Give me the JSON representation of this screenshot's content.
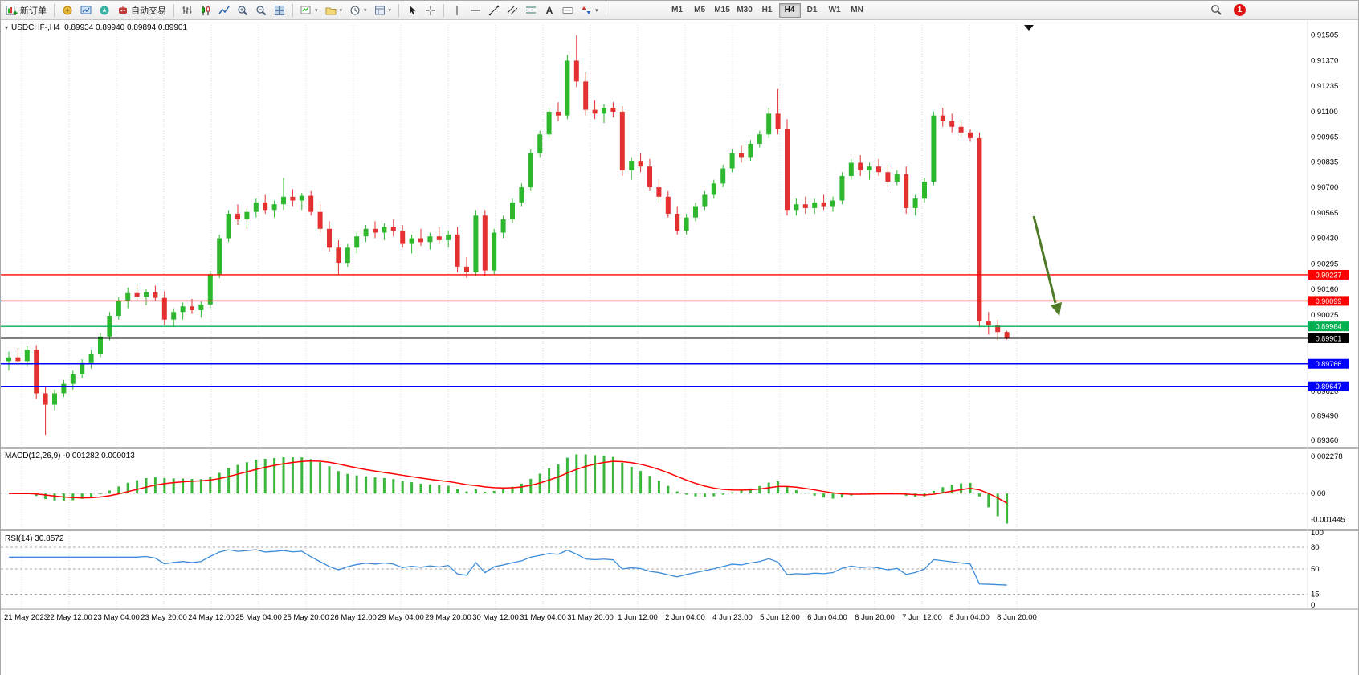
{
  "toolbar": {
    "new_order": "新订单",
    "auto_trading": "自动交易",
    "timeframes": [
      "M1",
      "M5",
      "M15",
      "M30",
      "H1",
      "H4",
      "D1",
      "W1",
      "MN"
    ],
    "active_timeframe": "H4",
    "notification_count": "1"
  },
  "window": {
    "symbol_info": "USDCHF-,H4  0.89934 0.89940 0.89894 0.89901"
  },
  "chart_data": {
    "type": "candlestick",
    "symbol": "USDCHF-",
    "timeframe": "H4",
    "price_range": [
      0.89327,
      0.91559
    ],
    "price_axis_labels": [
      0.91505,
      0.9137,
      0.91235,
      0.911,
      0.90965,
      0.90835,
      0.907,
      0.90565,
      0.9043,
      0.90295,
      0.9016,
      0.90025,
      0.8989,
      0.89755,
      0.8962,
      0.8949,
      0.8936
    ],
    "hlines": [
      {
        "price": 0.90237,
        "label": "0.90237",
        "color": "#ff0000"
      },
      {
        "price": 0.90099,
        "label": "0.90099",
        "color": "#ff0000"
      },
      {
        "price": 0.89964,
        "label": "0.89964",
        "color": "#00b050"
      },
      {
        "price": 0.89901,
        "label": "0.89901",
        "color": "#000000"
      },
      {
        "price": 0.89766,
        "label": "0.89766",
        "color": "#0000ff"
      },
      {
        "price": 0.89647,
        "label": "0.89647",
        "color": "#0000ff"
      }
    ],
    "time_labels": [
      "21 May 2023",
      "22 May 12:00",
      "23 May 04:00",
      "23 May 20:00",
      "24 May 12:00",
      "25 May 04:00",
      "25 May 20:00",
      "26 May 12:00",
      "29 May 04:00",
      "29 May 20:00",
      "30 May 12:00",
      "31 May 04:00",
      "31 May 20:00",
      "1 Jun 12:00",
      "2 Jun 04:00",
      "4 Jun 23:00",
      "5 Jun 12:00",
      "6 Jun 04:00",
      "6 Jun 20:00",
      "7 Jun 12:00",
      "8 Jun 04:00",
      "8 Jun 20:00"
    ],
    "ohlc": [
      [
        0.8978,
        0.8983,
        0.8973,
        0.898
      ],
      [
        0.898,
        0.8985,
        0.8976,
        0.8978
      ],
      [
        0.8978,
        0.8986,
        0.8975,
        0.8984
      ],
      [
        0.8984,
        0.89865,
        0.8958,
        0.8961
      ],
      [
        0.8961,
        0.8965,
        0.8939,
        0.8955
      ],
      [
        0.8955,
        0.8963,
        0.8952,
        0.8961
      ],
      [
        0.8961,
        0.8968,
        0.8959,
        0.8966
      ],
      [
        0.8966,
        0.8973,
        0.8963,
        0.8971
      ],
      [
        0.8971,
        0.8979,
        0.8969,
        0.8977
      ],
      [
        0.8977,
        0.8984,
        0.8974,
        0.8982
      ],
      [
        0.8982,
        0.8993,
        0.898,
        0.8991
      ],
      [
        0.8991,
        0.9004,
        0.8989,
        0.9002
      ],
      [
        0.9002,
        0.9012,
        0.9,
        0.901
      ],
      [
        0.901,
        0.9017,
        0.9006,
        0.9014
      ],
      [
        0.9014,
        0.90185,
        0.90095,
        0.9012
      ],
      [
        0.9012,
        0.9016,
        0.90075,
        0.90145
      ],
      [
        0.90145,
        0.9018,
        0.901,
        0.90115
      ],
      [
        0.90115,
        0.9015,
        0.8997,
        0.9
      ],
      [
        0.9,
        0.9006,
        0.8996,
        0.9004
      ],
      [
        0.9004,
        0.9009,
        0.9,
        0.9007
      ],
      [
        0.9007,
        0.9011,
        0.9003,
        0.9005
      ],
      [
        0.9005,
        0.901,
        0.9001,
        0.9008
      ],
      [
        0.9008,
        0.9026,
        0.9006,
        0.9024
      ],
      [
        0.9024,
        0.9045,
        0.9022,
        0.9043
      ],
      [
        0.9043,
        0.9058,
        0.9041,
        0.9056
      ],
      [
        0.9056,
        0.9061,
        0.905,
        0.9053
      ],
      [
        0.9053,
        0.9059,
        0.9048,
        0.9057
      ],
      [
        0.9057,
        0.9064,
        0.9054,
        0.9062
      ],
      [
        0.9062,
        0.9066,
        0.9056,
        0.9058
      ],
      [
        0.9058,
        0.9063,
        0.9054,
        0.9061
      ],
      [
        0.9061,
        0.9075,
        0.9058,
        0.9065
      ],
      [
        0.9065,
        0.9069,
        0.906,
        0.9063
      ],
      [
        0.9063,
        0.9067,
        0.9058,
        0.90655
      ],
      [
        0.90655,
        0.9068,
        0.9055,
        0.9057
      ],
      [
        0.9057,
        0.9061,
        0.9046,
        0.9048
      ],
      [
        0.9048,
        0.9052,
        0.9036,
        0.9038
      ],
      [
        0.9038,
        0.9042,
        0.9024,
        0.903
      ],
      [
        0.903,
        0.904,
        0.9028,
        0.9038
      ],
      [
        0.9038,
        0.9046,
        0.9035,
        0.9044
      ],
      [
        0.9044,
        0.905,
        0.9041,
        0.9048
      ],
      [
        0.9048,
        0.9052,
        0.9043,
        0.9046
      ],
      [
        0.9046,
        0.9051,
        0.9042,
        0.9049
      ],
      [
        0.9049,
        0.9053,
        0.9044,
        0.9047
      ],
      [
        0.9047,
        0.905,
        0.9038,
        0.904
      ],
      [
        0.904,
        0.9045,
        0.9035,
        0.9043
      ],
      [
        0.9043,
        0.9048,
        0.9039,
        0.9041
      ],
      [
        0.9041,
        0.9046,
        0.9037,
        0.9044
      ],
      [
        0.9044,
        0.9049,
        0.904,
        0.9042
      ],
      [
        0.9042,
        0.9047,
        0.9038,
        0.9045
      ],
      [
        0.9045,
        0.9049,
        0.9025,
        0.9028
      ],
      [
        0.9028,
        0.9033,
        0.9022,
        0.9025
      ],
      [
        0.9025,
        0.9058,
        0.9023,
        0.9055
      ],
      [
        0.9055,
        0.9058,
        0.9023,
        0.9026
      ],
      [
        0.9026,
        0.9048,
        0.9024,
        0.9046
      ],
      [
        0.9046,
        0.9055,
        0.9043,
        0.9053
      ],
      [
        0.9053,
        0.9064,
        0.9051,
        0.9062
      ],
      [
        0.9062,
        0.9072,
        0.906,
        0.907
      ],
      [
        0.907,
        0.909,
        0.9068,
        0.9088
      ],
      [
        0.9088,
        0.91,
        0.9086,
        0.9098
      ],
      [
        0.9098,
        0.9112,
        0.9096,
        0.911
      ],
      [
        0.911,
        0.9115,
        0.9105,
        0.9108
      ],
      [
        0.9108,
        0.914,
        0.9106,
        0.9137
      ],
      [
        0.9137,
        0.91505,
        0.9123,
        0.9126
      ],
      [
        0.9126,
        0.9131,
        0.9108,
        0.9111
      ],
      [
        0.9111,
        0.9116,
        0.9106,
        0.9109
      ],
      [
        0.9109,
        0.9114,
        0.9104,
        0.9112
      ],
      [
        0.9112,
        0.9115,
        0.9107,
        0.911
      ],
      [
        0.911,
        0.9113,
        0.9076,
        0.9079
      ],
      [
        0.9079,
        0.9086,
        0.9074,
        0.9084
      ],
      [
        0.9084,
        0.9088,
        0.9078,
        0.9081
      ],
      [
        0.9081,
        0.9085,
        0.9068,
        0.907
      ],
      [
        0.907,
        0.9074,
        0.9062,
        0.9065
      ],
      [
        0.9065,
        0.9068,
        0.9054,
        0.9056
      ],
      [
        0.9056,
        0.906,
        0.9045,
        0.9047
      ],
      [
        0.9047,
        0.9056,
        0.9045,
        0.9054
      ],
      [
        0.9054,
        0.9062,
        0.9052,
        0.906
      ],
      [
        0.906,
        0.9068,
        0.9058,
        0.9066
      ],
      [
        0.9066,
        0.9074,
        0.9064,
        0.9072
      ],
      [
        0.9072,
        0.9082,
        0.907,
        0.908
      ],
      [
        0.908,
        0.909,
        0.9078,
        0.9088
      ],
      [
        0.9088,
        0.9092,
        0.9083,
        0.9086
      ],
      [
        0.9086,
        0.9095,
        0.9084,
        0.9093
      ],
      [
        0.9093,
        0.91,
        0.9091,
        0.9098
      ],
      [
        0.9098,
        0.9112,
        0.9096,
        0.9109
      ],
      [
        0.9109,
        0.9122,
        0.9098,
        0.9101
      ],
      [
        0.9101,
        0.9106,
        0.9055,
        0.9058
      ],
      [
        0.9058,
        0.9064,
        0.9055,
        0.9061
      ],
      [
        0.9061,
        0.9065,
        0.9056,
        0.9059
      ],
      [
        0.9059,
        0.9064,
        0.9056,
        0.9062
      ],
      [
        0.9062,
        0.9066,
        0.9058,
        0.906
      ],
      [
        0.906,
        0.9065,
        0.9057,
        0.9063
      ],
      [
        0.9063,
        0.9078,
        0.9061,
        0.9076
      ],
      [
        0.9076,
        0.9085,
        0.9074,
        0.9083
      ],
      [
        0.9083,
        0.9087,
        0.9076,
        0.9079
      ],
      [
        0.9079,
        0.9083,
        0.9074,
        0.9081
      ],
      [
        0.9081,
        0.9085,
        0.9076,
        0.9078
      ],
      [
        0.9078,
        0.9082,
        0.907,
        0.9073
      ],
      [
        0.9073,
        0.9079,
        0.9071,
        0.9077
      ],
      [
        0.9077,
        0.9081,
        0.9056,
        0.9059
      ],
      [
        0.9059,
        0.9066,
        0.9055,
        0.9064
      ],
      [
        0.9064,
        0.9075,
        0.9062,
        0.9073
      ],
      [
        0.9073,
        0.911,
        0.9071,
        0.9108
      ],
      [
        0.9108,
        0.9112,
        0.9102,
        0.9105
      ],
      [
        0.9105,
        0.9109,
        0.9099,
        0.9102
      ],
      [
        0.9102,
        0.9106,
        0.9096,
        0.9099
      ],
      [
        0.9099,
        0.9101,
        0.9094,
        0.9096
      ],
      [
        0.9096,
        0.9099,
        0.8996,
        0.8999
      ],
      [
        0.8999,
        0.9004,
        0.8992,
        0.8997
      ],
      [
        0.8997,
        0.9,
        0.8989,
        0.89934
      ],
      [
        0.89934,
        0.8994,
        0.89894,
        0.89901
      ]
    ],
    "macd": {
      "label": "MACD(12,26,9) -0.001282 0.000013",
      "params": [
        12,
        26,
        9
      ],
      "main_value": -0.001282,
      "signal_value": 1.3e-05,
      "axis": [
        {
          "text": "0.002278",
          "value": 0.002278
        },
        {
          "text": "0.00",
          "value": 0
        },
        {
          "text": "-0.001445",
          "value": -0.001445
        }
      ],
      "hist_color": "#3cb63c",
      "signal_color": "#ff0000"
    },
    "rsi": {
      "label": "RSI(14) 30.8572",
      "period": 14,
      "value": 30.8572,
      "axis": [
        {
          "text": "100",
          "value": 100
        },
        {
          "text": "80",
          "value": 80
        },
        {
          "text": "50",
          "value": 50
        },
        {
          "text": "15",
          "value": 15
        },
        {
          "text": "0",
          "value": 0
        }
      ],
      "levels": [
        80,
        50,
        15
      ],
      "line_color": "#3c8cd8"
    },
    "colors": {
      "up": "#2db82d",
      "down": "#e33030",
      "grid": "#d9d9d9",
      "background": "#ffffff"
    },
    "annotation": {
      "type": "arrow-down",
      "color": "#4f7a28"
    }
  }
}
